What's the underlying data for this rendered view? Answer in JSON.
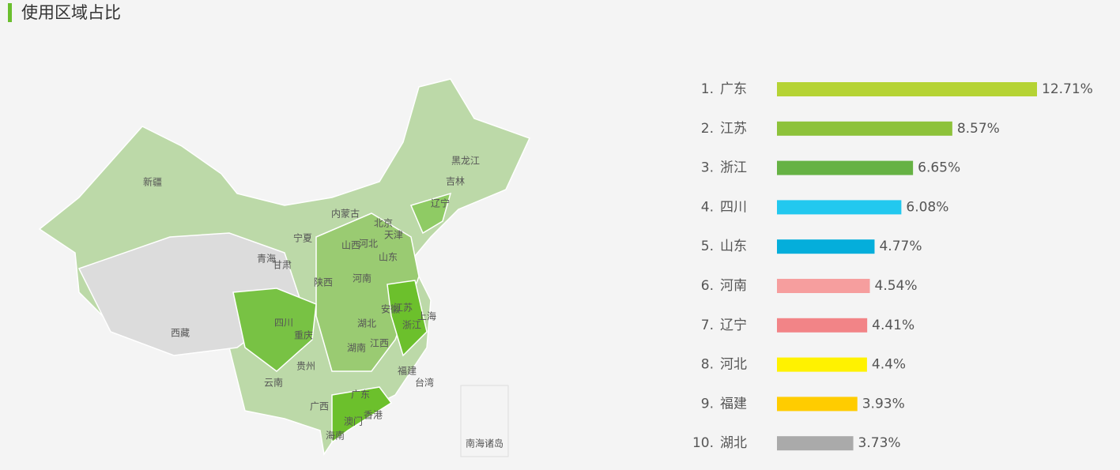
{
  "header": {
    "title": "使用区域占比"
  },
  "map": {
    "labels": [
      "新疆",
      "西藏",
      "青海",
      "甘肃",
      "宁夏",
      "内蒙古",
      "黑龙江",
      "吉林",
      "辽宁",
      "北京",
      "天津",
      "河北",
      "山西",
      "山东",
      "陕西",
      "河南",
      "四川",
      "重庆",
      "湖北",
      "安徽",
      "江苏",
      "上海",
      "浙江",
      "湖南",
      "江西",
      "贵州",
      "云南",
      "广西",
      "广东",
      "福建",
      "台湾",
      "香港",
      "澳门",
      "海南"
    ],
    "inset_label": "南海诸岛"
  },
  "chart_data": {
    "type": "bar",
    "orientation": "horizontal",
    "ranks": [
      "1.",
      "2.",
      "3.",
      "4.",
      "5.",
      "6.",
      "7.",
      "8.",
      "9.",
      "10."
    ],
    "categories": [
      "广东",
      "江苏",
      "浙江",
      "四川",
      "山东",
      "河南",
      "辽宁",
      "河北",
      "福建",
      "湖北"
    ],
    "values": [
      12.71,
      8.57,
      6.65,
      6.08,
      4.77,
      4.54,
      4.41,
      4.4,
      3.93,
      3.73
    ],
    "value_labels": [
      "12.71%",
      "8.57%",
      "6.65%",
      "6.08%",
      "4.77%",
      "4.54%",
      "4.41%",
      "4.4%",
      "3.93%",
      "3.73%"
    ],
    "colors": [
      "#b5d334",
      "#8dc23a",
      "#66b244",
      "#22c8ef",
      "#04aedb",
      "#f69e9e",
      "#f28487",
      "#fff200",
      "#ffcc00",
      "#aaaaaa"
    ]
  }
}
